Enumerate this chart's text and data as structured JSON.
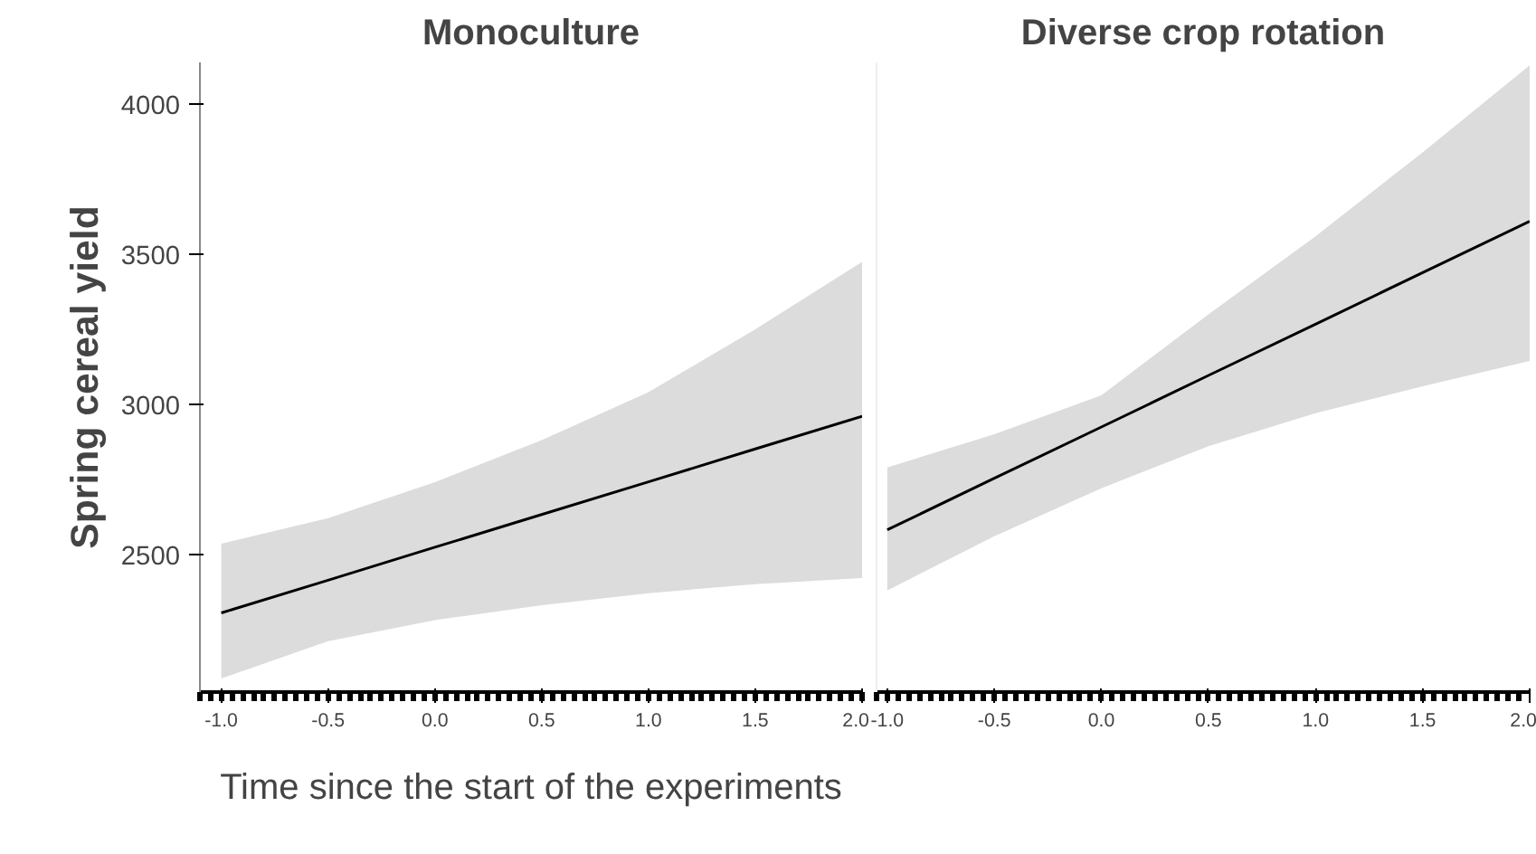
{
  "chart_data": [
    {
      "type": "line",
      "title": "Monoculture",
      "ylabel": "Spring cereal yield",
      "xlabel": "Time since the start of the experiments",
      "x": [
        -1.0,
        -0.5,
        0.0,
        0.5,
        1.0,
        1.5,
        2.0
      ],
      "series": [
        {
          "color": "#000000",
          "values": [
            2304,
            2413,
            2523,
            2632,
            2741,
            2851,
            2960
          ],
          "lower": [
            2085,
            2210,
            2280,
            2330,
            2370,
            2400,
            2420
          ],
          "upper": [
            2535,
            2620,
            2740,
            2880,
            3040,
            3250,
            3475
          ]
        }
      ],
      "xlim": [
        -1.1,
        2.0
      ],
      "ylim": [
        2040,
        4140
      ],
      "xticks": [
        {
          "value": -1.0,
          "label": "-1.0"
        },
        {
          "value": -0.5,
          "label": "-0.5"
        },
        {
          "value": 0.0,
          "label": "0.0"
        },
        {
          "value": 0.5,
          "label": "0.5"
        },
        {
          "value": 1.0,
          "label": "1.0"
        },
        {
          "value": 1.5,
          "label": "1.5"
        },
        {
          "value": 2.0,
          "label": "2.0"
        }
      ],
      "yticks": [
        2500,
        3000,
        3500,
        4000
      ]
    },
    {
      "type": "line",
      "title": "Diverse crop rotation",
      "x": [
        -1.0,
        -0.5,
        0.0,
        0.5,
        1.0,
        1.5,
        2.0
      ],
      "series": [
        {
          "color": "#000000",
          "values": [
            2581,
            2753,
            2924,
            3096,
            3267,
            3439,
            3610
          ],
          "lower": [
            2379,
            2560,
            2720,
            2860,
            2970,
            3060,
            3144
          ],
          "upper": [
            2789,
            2900,
            3030,
            3300,
            3560,
            3840,
            4130
          ]
        }
      ],
      "xlim": [
        -1.05,
        2.0
      ],
      "ylim": [
        2040,
        4140
      ],
      "xticks": [
        {
          "value": -1.0,
          "label": "-1.0"
        },
        {
          "value": -0.5,
          "label": "-0.5"
        },
        {
          "value": 0.0,
          "label": "0.0"
        },
        {
          "value": 0.5,
          "label": "0.5"
        },
        {
          "value": 1.0,
          "label": "1.0"
        },
        {
          "value": 1.5,
          "label": "1.5"
        },
        {
          "value": 2.0,
          "label": "2.0"
        }
      ],
      "tick_labels": "x"
    }
  ]
}
